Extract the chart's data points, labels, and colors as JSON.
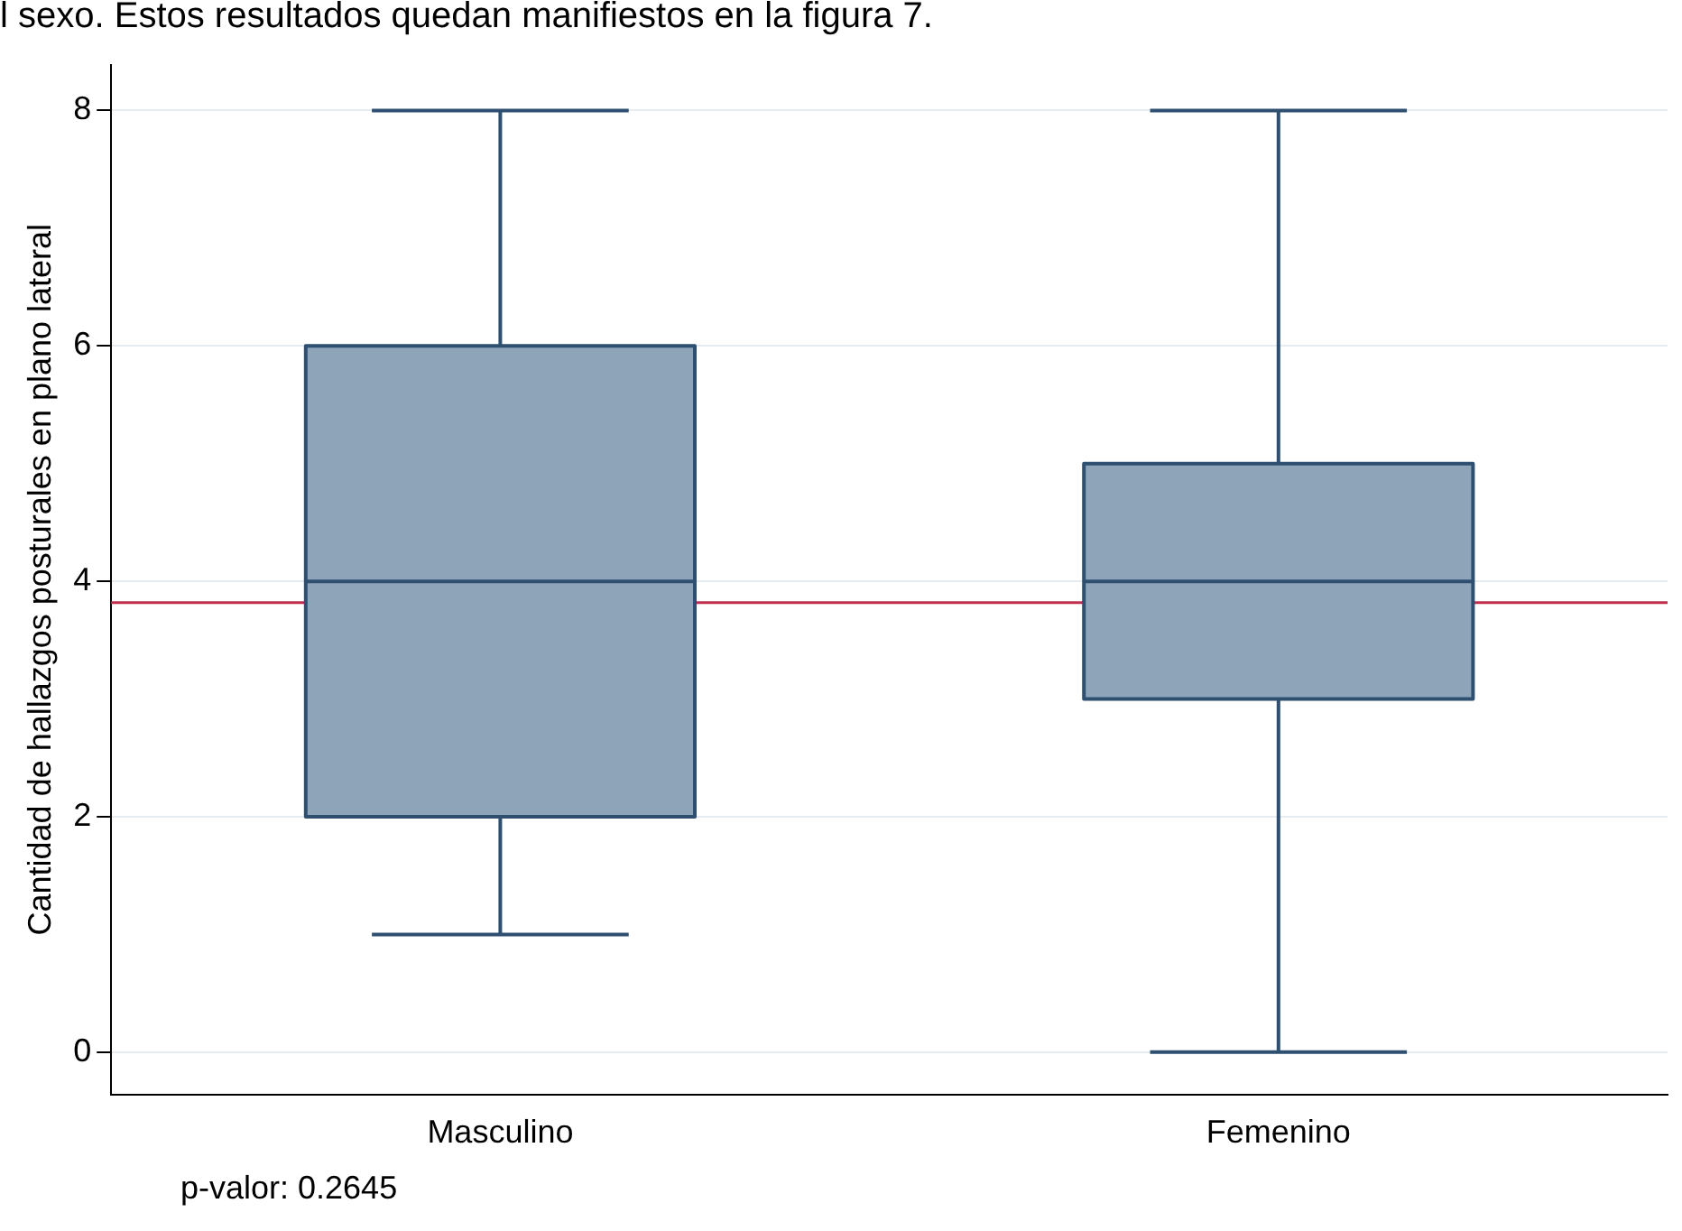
{
  "chart_data": {
    "type": "box",
    "ylabel": "Cantidad de hallazgos posturales en plano lateral",
    "categories": [
      "Masculino",
      "Femenino"
    ],
    "boxes": [
      {
        "low": 1,
        "q1": 2,
        "median": 4,
        "q3": 6,
        "high": 8
      },
      {
        "low": 0,
        "q1": 3,
        "median": 4,
        "q3": 5,
        "high": 8
      }
    ],
    "color": "#8da4b9",
    "ylim": [
      -0.36,
      8.39
    ],
    "yticks": [
      0,
      2,
      4,
      6,
      8
    ],
    "grid": "y",
    "legend": false,
    "ref_lines": [
      {
        "axis": "y",
        "value": 3.82,
        "color": "#c0304e"
      }
    ],
    "annotations": [
      "l sexo. Estos resultados quedan manifiestos en la figura 7.",
      "p-valor: 0.2645"
    ]
  }
}
